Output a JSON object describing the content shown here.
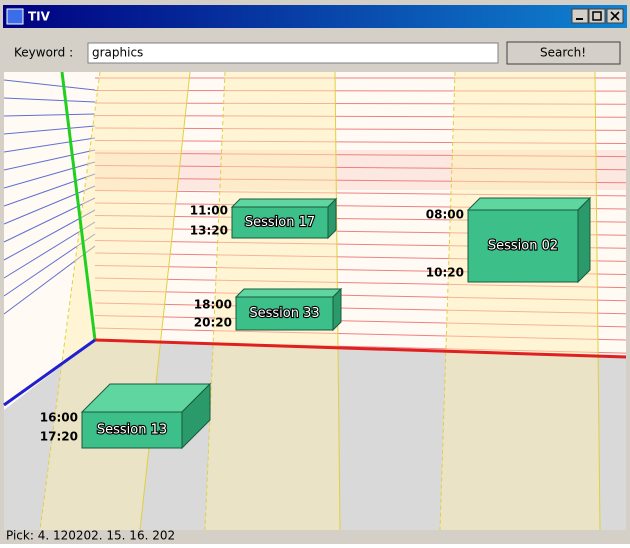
{
  "window": {
    "title": "TIV"
  },
  "toolbar": {
    "keyword_label": "Keyword :",
    "keyword_value": "graphics",
    "button": "Search!"
  },
  "sessions": [
    {
      "label": "Session 17",
      "start": "11:00",
      "end": "13:20"
    },
    {
      "label": "Session 33",
      "start": "18:00",
      "end": "20:20"
    },
    {
      "label": "Session 02",
      "start": "08:00",
      "end": "10:20"
    },
    {
      "label": "Session 13",
      "start": "16:00",
      "end": "17:20"
    }
  ],
  "status": "Pick: 4. 120202. 15. 16. 202"
}
